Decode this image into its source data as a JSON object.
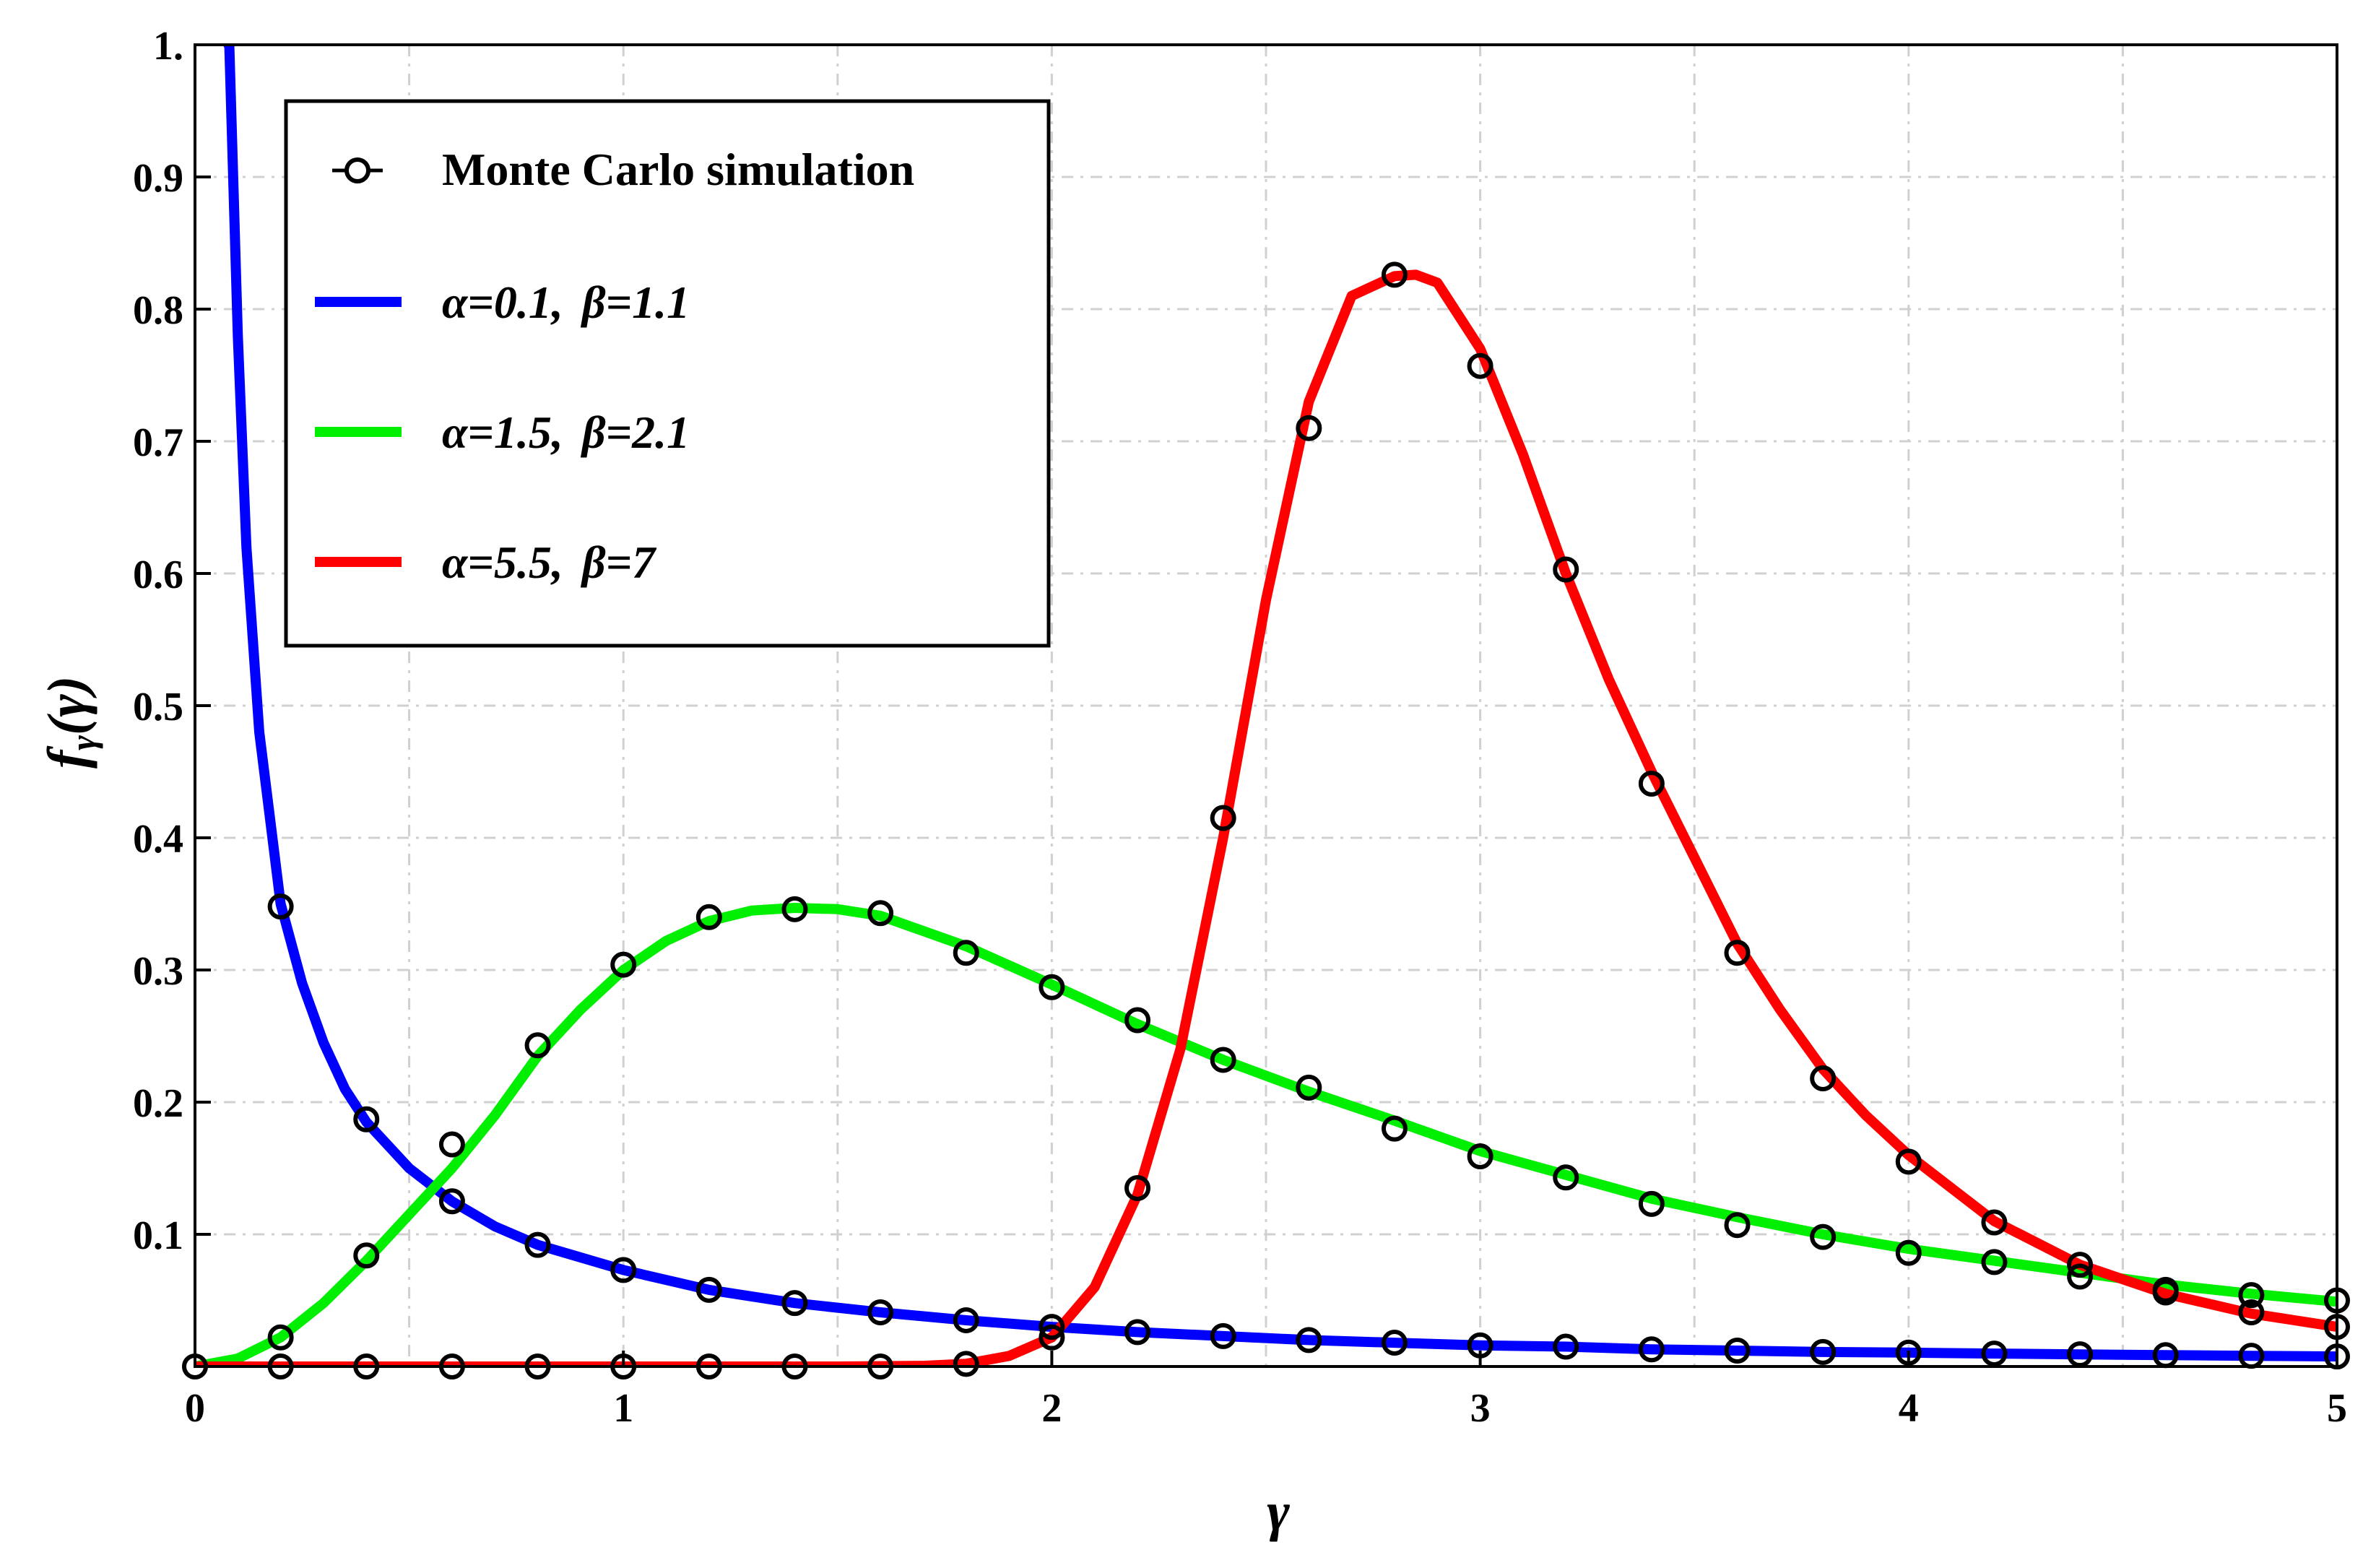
{
  "chart_data": {
    "type": "line",
    "xlabel": "γ",
    "ylabel": {
      "base": "f",
      "subscript": "γ",
      "argument": "(γ)"
    },
    "xlim": [
      0,
      5
    ],
    "ylim": [
      0,
      1.0
    ],
    "grid": true,
    "legend_position": "top-left",
    "x_ticks": [
      0,
      1,
      2,
      3,
      4,
      5
    ],
    "x_tick_labels": [
      "0",
      "1",
      "2",
      "3",
      "4",
      "5"
    ],
    "y_ticks": [
      0.1,
      0.2,
      0.3,
      0.4,
      0.5,
      0.6,
      0.7,
      0.8,
      0.9,
      1.0
    ],
    "y_tick_labels": [
      "0.1",
      "0.2",
      "0.3",
      "0.4",
      "0.5",
      "0.6",
      "0.7",
      "0.8",
      "0.9",
      "1."
    ],
    "legend": [
      {
        "label": "Monte Carlo simulation",
        "marker": "circle",
        "color": "#000000"
      },
      {
        "alpha_label": "α=0.1,",
        "beta_label": "β=1.1",
        "color": "#0000FF"
      },
      {
        "alpha_label": "α=1.5,",
        "beta_label": "β=2.1",
        "color": "#00EE00"
      },
      {
        "alpha_label": "α=5.5,",
        "beta_label": "β=7",
        "color": "#FF0000"
      }
    ],
    "series": [
      {
        "name": "α=0.1, β=1.1",
        "color": "#0000FF",
        "x": [
          0.08,
          0.1,
          0.12,
          0.15,
          0.2,
          0.25,
          0.3,
          0.35,
          0.4,
          0.5,
          0.6,
          0.7,
          0.8,
          1.0,
          1.2,
          1.4,
          1.6,
          1.8,
          2.0,
          2.2,
          2.4,
          2.6,
          2.8,
          3.0,
          3.2,
          3.4,
          3.6,
          3.8,
          4.0,
          4.2,
          4.4,
          4.6,
          4.8,
          5.0
        ],
        "y": [
          1.0,
          0.78,
          0.62,
          0.48,
          0.35,
          0.29,
          0.245,
          0.21,
          0.185,
          0.15,
          0.125,
          0.106,
          0.092,
          0.073,
          0.058,
          0.048,
          0.041,
          0.035,
          0.03,
          0.026,
          0.023,
          0.02,
          0.018,
          0.016,
          0.015,
          0.013,
          0.012,
          0.011,
          0.0105,
          0.0098,
          0.0092,
          0.0086,
          0.0081,
          0.0076
        ]
      },
      {
        "name": "α=1.5, β=2.1",
        "color": "#00EE00",
        "x": [
          0.0,
          0.1,
          0.2,
          0.3,
          0.4,
          0.5,
          0.6,
          0.7,
          0.8,
          0.9,
          1.0,
          1.1,
          1.2,
          1.3,
          1.4,
          1.5,
          1.6,
          1.8,
          2.0,
          2.2,
          2.4,
          2.6,
          2.8,
          3.0,
          3.2,
          3.4,
          3.6,
          3.8,
          4.0,
          4.2,
          4.4,
          4.6,
          4.8,
          5.0
        ],
        "y": [
          0.0,
          0.006,
          0.022,
          0.048,
          0.08,
          0.115,
          0.15,
          0.19,
          0.235,
          0.27,
          0.3,
          0.322,
          0.337,
          0.345,
          0.347,
          0.346,
          0.341,
          0.318,
          0.289,
          0.259,
          0.232,
          0.208,
          0.186,
          0.163,
          0.145,
          0.127,
          0.113,
          0.1,
          0.089,
          0.08,
          0.071,
          0.062,
          0.055,
          0.049
        ]
      },
      {
        "name": "α=5.5, β=7",
        "color": "#FF0000",
        "x": [
          0.0,
          1.5,
          1.7,
          1.8,
          1.9,
          2.0,
          2.1,
          2.2,
          2.3,
          2.4,
          2.5,
          2.6,
          2.7,
          2.8,
          2.85,
          2.9,
          3.0,
          3.1,
          3.2,
          3.3,
          3.4,
          3.5,
          3.6,
          3.7,
          3.8,
          3.9,
          4.0,
          4.2,
          4.4,
          4.6,
          4.8,
          5.0
        ],
        "y": [
          0.0,
          0.0,
          0.0005,
          0.002,
          0.008,
          0.022,
          0.06,
          0.13,
          0.24,
          0.4,
          0.58,
          0.73,
          0.81,
          0.825,
          0.826,
          0.82,
          0.77,
          0.69,
          0.6,
          0.52,
          0.45,
          0.385,
          0.32,
          0.27,
          0.225,
          0.19,
          0.16,
          0.11,
          0.077,
          0.055,
          0.04,
          0.03
        ]
      }
    ],
    "simulation_points": [
      {
        "series": "α=0.1, β=1.1",
        "x": [
          0.2,
          0.4,
          0.6,
          0.8,
          1.0,
          1.2,
          1.4,
          1.6,
          1.8,
          2.0,
          2.2,
          2.4,
          2.6,
          2.8,
          3.0,
          3.2,
          3.4,
          3.6,
          3.8,
          4.0,
          4.2,
          4.4,
          4.6,
          4.8,
          5.0
        ],
        "y": [
          0.348,
          0.187,
          0.125,
          0.092,
          0.073,
          0.058,
          0.048,
          0.041,
          0.035,
          0.03,
          0.026,
          0.023,
          0.02,
          0.018,
          0.016,
          0.015,
          0.013,
          0.012,
          0.011,
          0.0105,
          0.0098,
          0.0092,
          0.0086,
          0.0081,
          0.0076
        ]
      },
      {
        "series": "α=1.5, β=2.1",
        "x": [
          0.2,
          0.4,
          0.6,
          0.8,
          1.0,
          1.2,
          1.4,
          1.6,
          1.8,
          2.0,
          2.2,
          2.4,
          2.6,
          2.8,
          3.0,
          3.2,
          3.4,
          3.6,
          3.8,
          4.0,
          4.2,
          4.4,
          4.6,
          4.8,
          5.0
        ],
        "y": [
          0.022,
          0.084,
          0.168,
          0.243,
          0.304,
          0.34,
          0.346,
          0.343,
          0.313,
          0.287,
          0.262,
          0.232,
          0.211,
          0.18,
          0.159,
          0.143,
          0.123,
          0.107,
          0.098,
          0.086,
          0.079,
          0.068,
          0.058,
          0.054,
          0.05
        ]
      },
      {
        "series": "α=5.5, β=7",
        "x": [
          0.0,
          0.2,
          0.4,
          0.6,
          0.8,
          1.0,
          1.2,
          1.4,
          1.6,
          1.8,
          2.0,
          2.2,
          2.4,
          2.6,
          2.8,
          3.0,
          3.2,
          3.4,
          3.6,
          3.8,
          4.0,
          4.2,
          4.4,
          4.6,
          4.8,
          5.0
        ],
        "y": [
          0.0,
          0.0,
          0.0,
          0.0,
          0.0,
          0.0,
          0.0,
          0.0,
          0.0,
          0.002,
          0.022,
          0.135,
          0.415,
          0.71,
          0.826,
          0.757,
          0.603,
          0.441,
          0.313,
          0.218,
          0.155,
          0.109,
          0.077,
          0.056,
          0.041,
          0.03
        ]
      }
    ]
  }
}
